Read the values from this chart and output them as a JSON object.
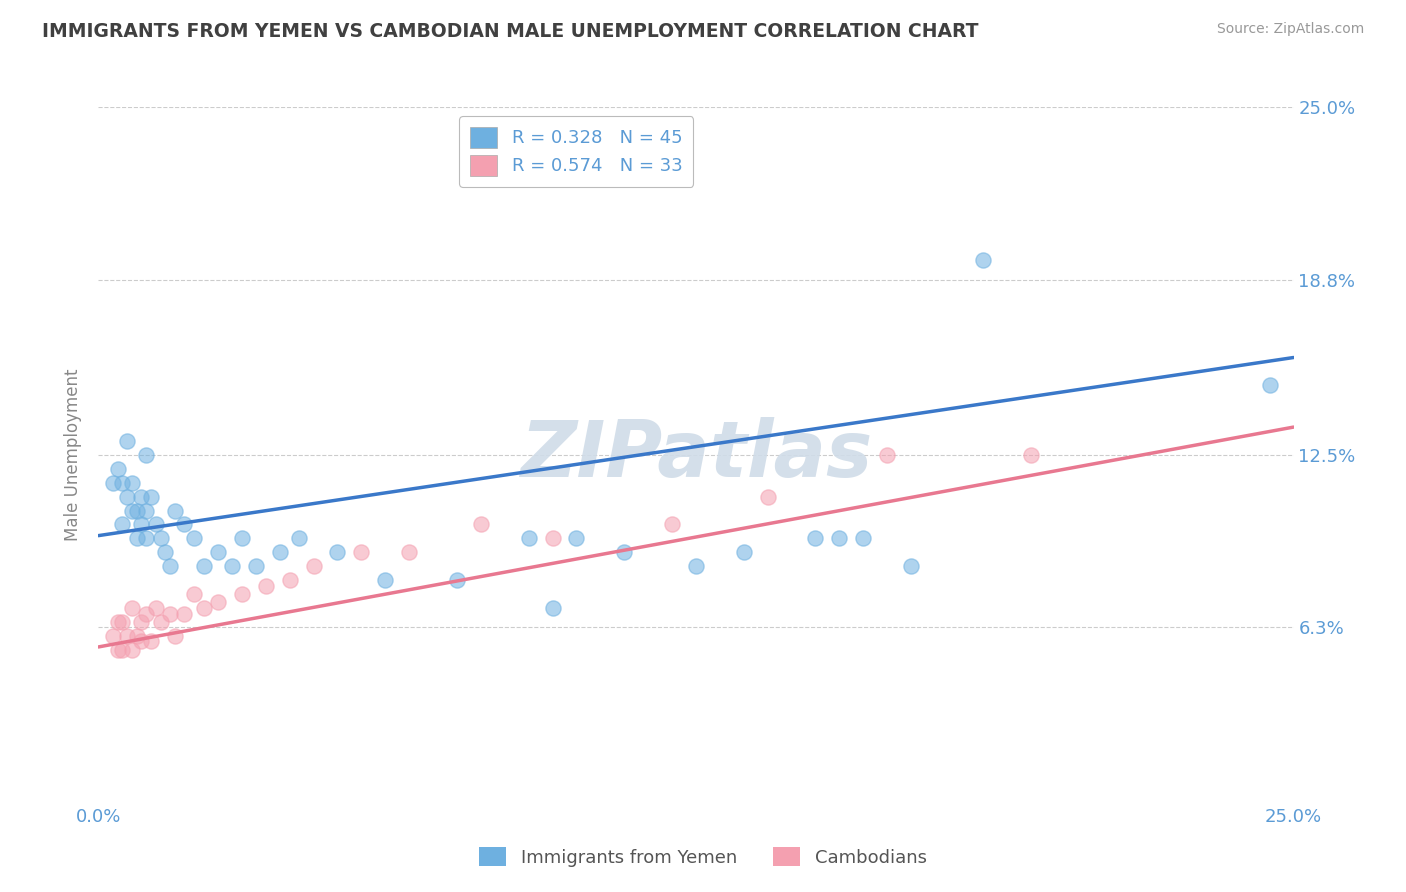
{
  "title": "IMMIGRANTS FROM YEMEN VS CAMBODIAN MALE UNEMPLOYMENT CORRELATION CHART",
  "source": "Source: ZipAtlas.com",
  "ylabel": "Male Unemployment",
  "x_min": 0.0,
  "x_max": 0.25,
  "y_min": 0.0,
  "y_max": 0.25,
  "y_ticks": [
    0.063,
    0.125,
    0.188,
    0.25
  ],
  "y_tick_labels": [
    "6.3%",
    "12.5%",
    "18.8%",
    "25.0%"
  ],
  "x_ticks": [
    0.0,
    0.25
  ],
  "x_tick_labels": [
    "0.0%",
    "25.0%"
  ],
  "legend_r1": "R = 0.328",
  "legend_n1": "N = 45",
  "legend_r2": "R = 0.574",
  "legend_n2": "N = 33",
  "blue_color": "#6EB0E0",
  "pink_color": "#F4A0B0",
  "blue_line_color": "#3A78C9",
  "pink_line_color": "#E87890",
  "title_color": "#404040",
  "axis_label_color": "#5B9BD5",
  "grid_color": "#CCCCCC",
  "watermark_color": "#D0DCE8",
  "yemen_x": [
    0.003,
    0.004,
    0.005,
    0.005,
    0.006,
    0.006,
    0.007,
    0.007,
    0.008,
    0.008,
    0.009,
    0.009,
    0.01,
    0.01,
    0.01,
    0.011,
    0.012,
    0.013,
    0.014,
    0.015,
    0.016,
    0.018,
    0.02,
    0.022,
    0.025,
    0.028,
    0.03,
    0.033,
    0.038,
    0.042,
    0.05,
    0.06,
    0.075,
    0.09,
    0.095,
    0.1,
    0.11,
    0.125,
    0.135,
    0.15,
    0.155,
    0.16,
    0.17,
    0.185,
    0.245
  ],
  "yemen_y": [
    0.115,
    0.12,
    0.1,
    0.115,
    0.11,
    0.13,
    0.105,
    0.115,
    0.095,
    0.105,
    0.1,
    0.11,
    0.095,
    0.105,
    0.125,
    0.11,
    0.1,
    0.095,
    0.09,
    0.085,
    0.105,
    0.1,
    0.095,
    0.085,
    0.09,
    0.085,
    0.095,
    0.085,
    0.09,
    0.095,
    0.09,
    0.08,
    0.08,
    0.095,
    0.07,
    0.095,
    0.09,
    0.085,
    0.09,
    0.095,
    0.095,
    0.095,
    0.085,
    0.195,
    0.15
  ],
  "cambodian_x": [
    0.003,
    0.004,
    0.004,
    0.005,
    0.005,
    0.006,
    0.007,
    0.007,
    0.008,
    0.009,
    0.009,
    0.01,
    0.011,
    0.012,
    0.013,
    0.015,
    0.016,
    0.018,
    0.02,
    0.022,
    0.025,
    0.03,
    0.035,
    0.04,
    0.045,
    0.055,
    0.065,
    0.08,
    0.095,
    0.12,
    0.14,
    0.165,
    0.195
  ],
  "cambodian_y": [
    0.06,
    0.055,
    0.065,
    0.055,
    0.065,
    0.06,
    0.055,
    0.07,
    0.06,
    0.058,
    0.065,
    0.068,
    0.058,
    0.07,
    0.065,
    0.068,
    0.06,
    0.068,
    0.075,
    0.07,
    0.072,
    0.075,
    0.078,
    0.08,
    0.085,
    0.09,
    0.09,
    0.1,
    0.095,
    0.1,
    0.11,
    0.125,
    0.125
  ],
  "blue_line_x0": 0.0,
  "blue_line_y0": 0.096,
  "blue_line_x1": 0.25,
  "blue_line_y1": 0.16,
  "pink_line_x0": 0.0,
  "pink_line_y0": 0.056,
  "pink_line_x1": 0.25,
  "pink_line_y1": 0.135
}
